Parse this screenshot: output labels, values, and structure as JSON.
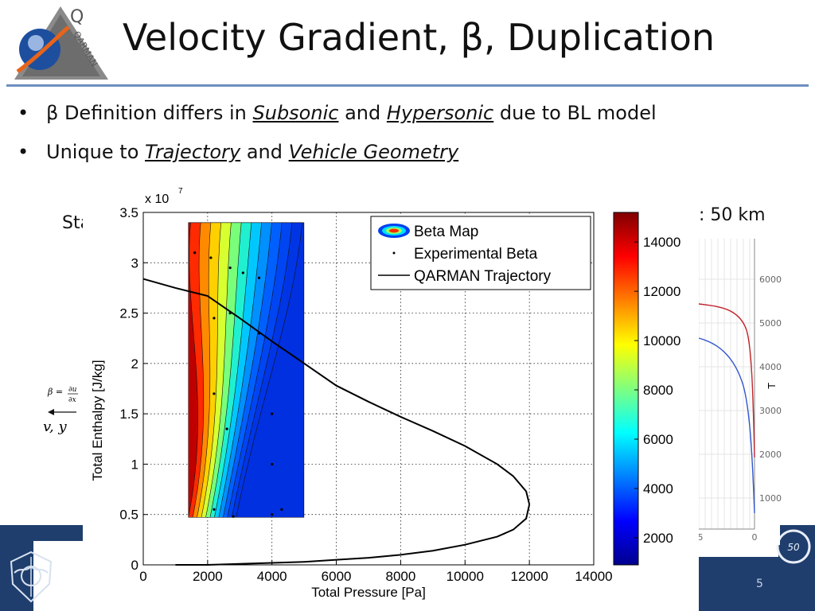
{
  "slide": {
    "title": "Velocity Gradient, β, Duplication",
    "page_number": "5",
    "logo_text": "QARMAN",
    "bullets": [
      {
        "prefix": "β Definition differs in ",
        "emph1": "Subsonic",
        "mid": " and ",
        "emph2": "Hypersonic",
        "suffix": " due to BL model"
      },
      {
        "prefix": "Unique to ",
        "emph1": "Trajectory",
        "mid": " and ",
        "emph2": "Vehicle Geometry",
        "suffix": ""
      }
    ],
    "bullet_glyph": "•",
    "background_fragments": {
      "left_word": "Sta",
      "right_text": ": 50 km",
      "vy_label": "v, y"
    },
    "badge_text": "50",
    "colors": {
      "accent_rule": "#6d8fbf",
      "footer": "#1f3e6d"
    }
  },
  "chart_data": {
    "type": "heatmap",
    "xlabel": "Total Pressure [Pa]",
    "ylabel": "Total Enthalpy [J/kg]",
    "y_multiplier_label": "x 10",
    "y_multiplier_exp": "7",
    "xlim": [
      0,
      14000
    ],
    "ylim": [
      0,
      3.5
    ],
    "x_ticks": [
      "0",
      "2000",
      "4000",
      "6000",
      "8000",
      "10000",
      "12000",
      "14000"
    ],
    "y_ticks": [
      "0",
      "0.5",
      "1",
      "1.5",
      "2",
      "2.5",
      "3",
      "3.5"
    ],
    "grid": true,
    "legend": {
      "placement": "top-right",
      "entries": [
        "Beta Map",
        "Experimental Beta",
        "QARMAN Trajectory"
      ]
    },
    "beta_map": {
      "x_range": [
        1400,
        5000
      ],
      "y_range": [
        0.47,
        3.4
      ]
    },
    "colorbar": {
      "ticks": [
        "2000",
        "4000",
        "6000",
        "8000",
        "10000",
        "12000",
        "14000"
      ],
      "range": [
        900,
        15200
      ]
    },
    "trajectory": {
      "x": [
        12000,
        11900,
        11500,
        11000,
        10000,
        9000,
        8000,
        7000,
        6000,
        5000,
        4000,
        3000,
        2000,
        1000,
        0,
        1000,
        2000,
        3000,
        4000,
        5000,
        6000,
        7000,
        8000,
        9000,
        10000,
        11000,
        11500,
        11900,
        12000
      ],
      "y": [
        0.6,
        0.73,
        0.88,
        1.0,
        1.18,
        1.33,
        1.47,
        1.62,
        1.78,
        2.0,
        2.22,
        2.45,
        2.67,
        2.75,
        2.84,
        0.0,
        0.0,
        0.01,
        0.02,
        0.03,
        0.05,
        0.07,
        0.1,
        0.14,
        0.2,
        0.28,
        0.35,
        0.46,
        0.6
      ]
    },
    "experimental_beta": [
      {
        "x": 1600,
        "y": 3.1
      },
      {
        "x": 2100,
        "y": 3.05
      },
      {
        "x": 2700,
        "y": 2.95
      },
      {
        "x": 3100,
        "y": 2.9
      },
      {
        "x": 3600,
        "y": 2.85
      },
      {
        "x": 2200,
        "y": 2.45
      },
      {
        "x": 2700,
        "y": 2.5
      },
      {
        "x": 3600,
        "y": 2.3
      },
      {
        "x": 2200,
        "y": 1.7
      },
      {
        "x": 2600,
        "y": 1.35
      },
      {
        "x": 4000,
        "y": 1.5
      },
      {
        "x": 4000,
        "y": 1.0
      },
      {
        "x": 2200,
        "y": 0.55
      },
      {
        "x": 2800,
        "y": 0.48
      },
      {
        "x": 4000,
        "y": 0.5
      },
      {
        "x": 4300,
        "y": 0.55
      }
    ]
  },
  "side_chart": {
    "x_ticks": [
      "5",
      "0"
    ],
    "y_ticks": [
      "6000",
      "5000",
      "4000",
      "3000",
      "2000",
      "1000"
    ],
    "ylabel": "T",
    "colors": {
      "series_a": "#c0242b",
      "series_b": "#2f55cc"
    }
  }
}
